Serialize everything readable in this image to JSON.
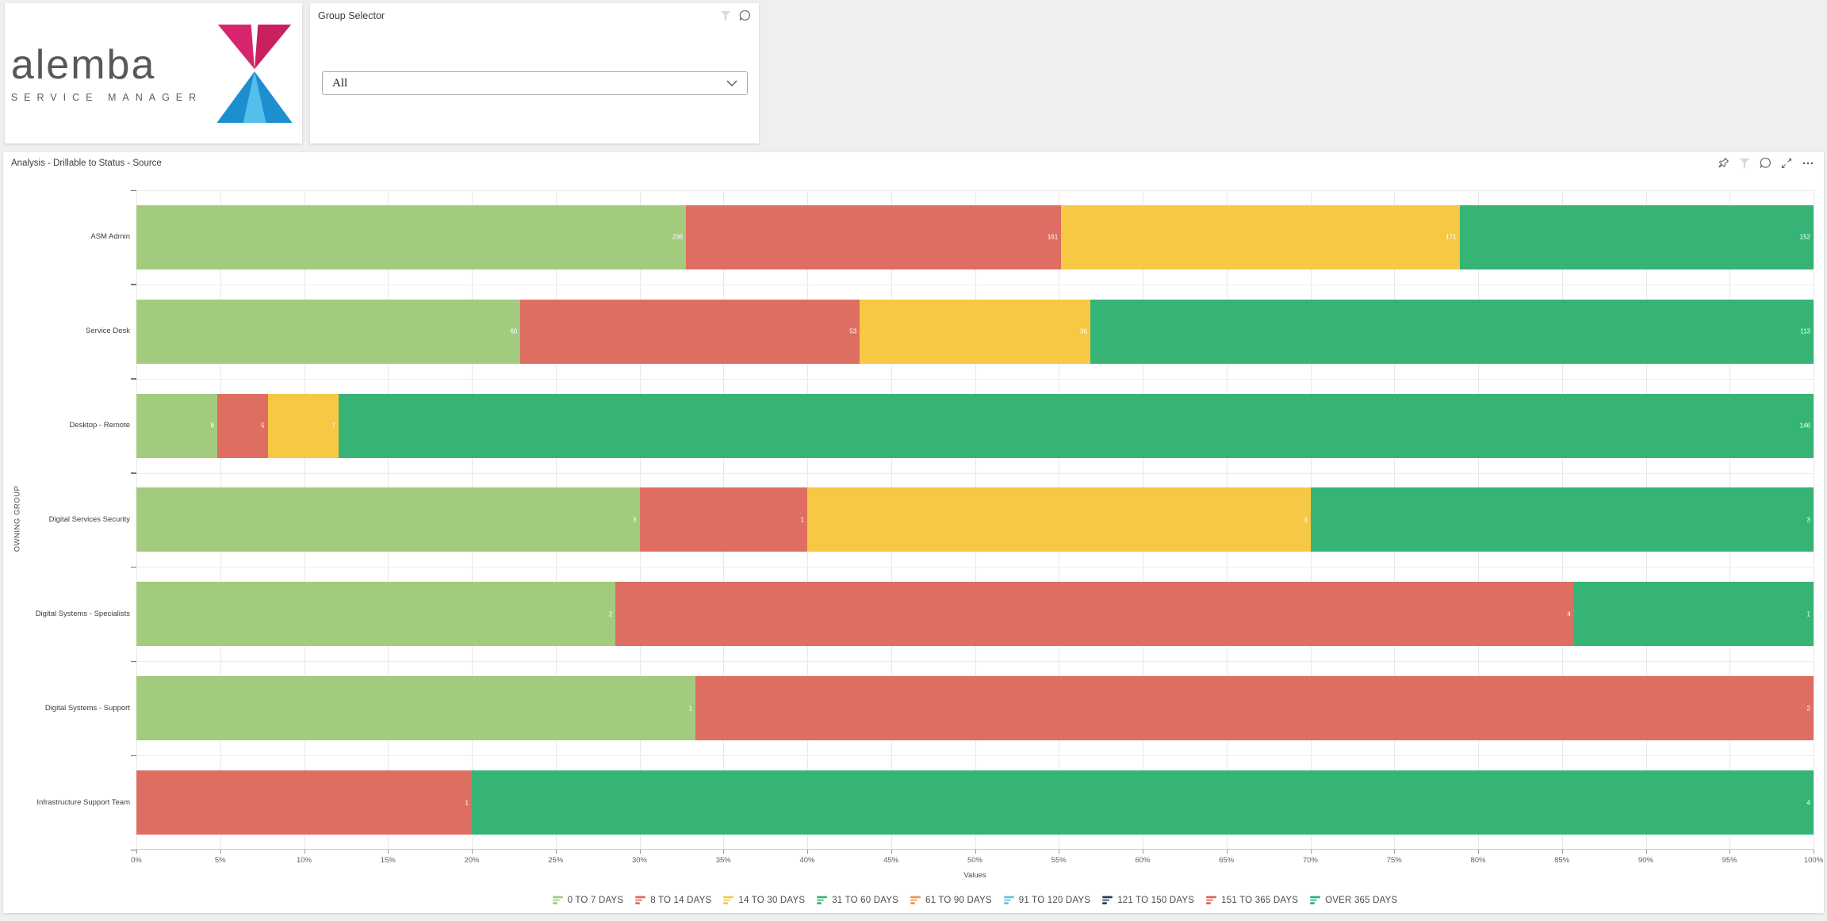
{
  "header": {
    "logo": {
      "brand": "alemba",
      "subtitle": "SERVICE MANAGER"
    },
    "group_selector": {
      "title": "Group Selector",
      "dropdown_value": "All"
    }
  },
  "panel": {
    "title": "Analysis - Drillable to Status - Source"
  },
  "chart_data": {
    "type": "bar",
    "variant": "horizontal-100-stacked",
    "title": "Analysis - Drillable to Status - Source",
    "xlabel": "Values",
    "ylabel": "OWNING GROUP",
    "grid": true,
    "legend_position": "bottom",
    "x_ticks": [
      "0%",
      "5%",
      "10%",
      "15%",
      "20%",
      "25%",
      "30%",
      "35%",
      "40%",
      "45%",
      "50%",
      "55%",
      "60%",
      "65%",
      "70%",
      "75%",
      "80%",
      "85%",
      "90%",
      "95%",
      "100%"
    ],
    "categories": [
      "ASM Admin",
      "Service Desk",
      "Desktop - Remote",
      "Digital Services Security",
      "Digital Systems - Specialists",
      "Digital Systems - Support",
      "Infrastructure Support Team"
    ],
    "series": [
      {
        "name": "0 TO 7 DAYS",
        "color": "#a2cb7e",
        "values": [
          236,
          60,
          8,
          3,
          2,
          1,
          0
        ]
      },
      {
        "name": "8 TO 14 DAYS",
        "color": "#df6e62",
        "values": [
          161,
          53,
          5,
          1,
          4,
          2,
          1
        ]
      },
      {
        "name": "14 TO 30 DAYS",
        "color": "#f7c843",
        "values": [
          171,
          36,
          7,
          3,
          0,
          0,
          0
        ]
      },
      {
        "name": "31 TO 60 DAYS",
        "color": "#36b475",
        "values": [
          152,
          113,
          146,
          3,
          1,
          0,
          4
        ]
      },
      {
        "name": "61 TO 90 DAYS",
        "color": "#f0954d",
        "values": [
          0,
          0,
          0,
          0,
          0,
          0,
          0
        ]
      },
      {
        "name": "91 TO 120 DAYS",
        "color": "#6fbbdf",
        "values": [
          0,
          0,
          0,
          0,
          0,
          0,
          0
        ]
      },
      {
        "name": "121 TO 150 DAYS",
        "color": "#2e4053",
        "values": [
          0,
          0,
          0,
          0,
          0,
          0,
          0
        ]
      },
      {
        "name": "151 TO 365 DAYS",
        "color": "#e0634f",
        "values": [
          0,
          0,
          0,
          0,
          0,
          0,
          0
        ]
      },
      {
        "name": "OVER 365 DAYS",
        "color": "#2fb27e",
        "values": [
          0,
          0,
          0,
          0,
          0,
          0,
          0
        ]
      }
    ]
  },
  "colors": {
    "brand_pink_left": "#d6256d",
    "brand_pink_right": "#c9215f",
    "brand_blue_mid": "#55bfec",
    "brand_blue_side": "#1d8fd0",
    "icon_gray": "#666666",
    "icon_disabled": "#d4d4d4"
  }
}
